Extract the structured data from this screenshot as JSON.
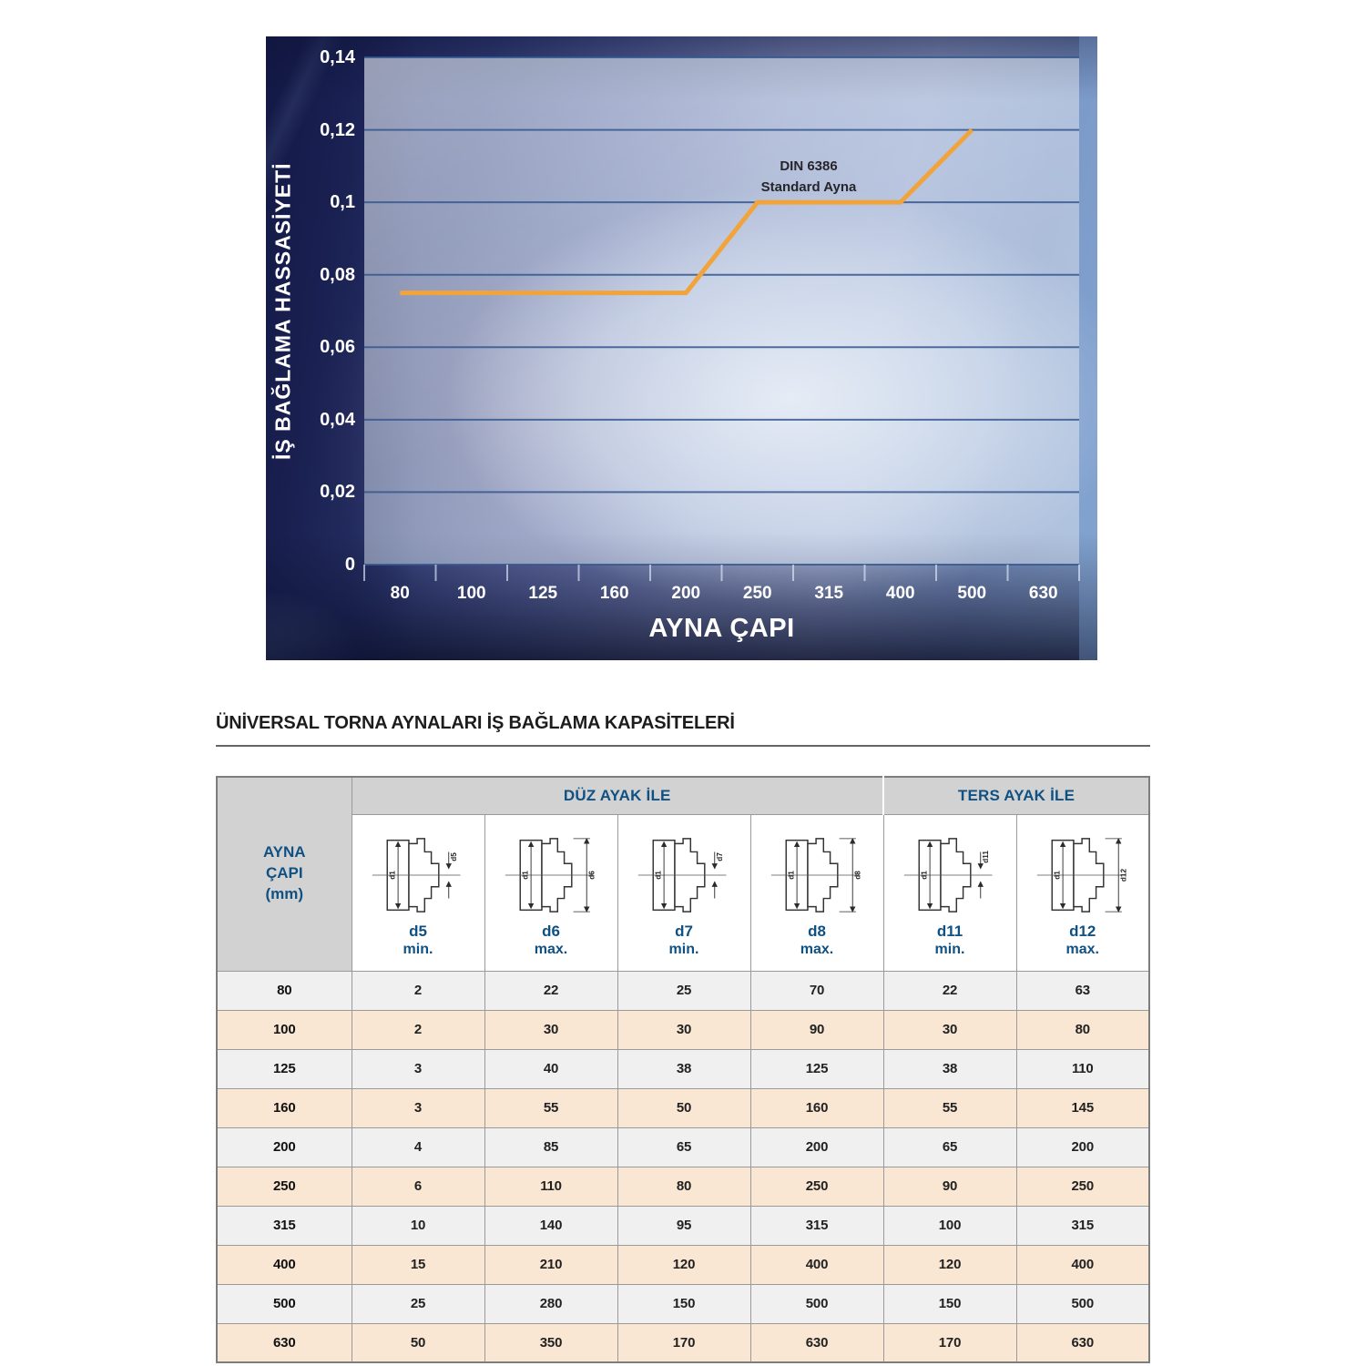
{
  "chart": {
    "y_axis_title": "İŞ BAĞLAMA HASSASİYETİ",
    "x_axis_title": "AYNA ÇAPI",
    "y_ticks": [
      "0,14",
      "0,12",
      "0,1",
      "0,08",
      "0,06",
      "0,04",
      "0,02",
      "0"
    ],
    "x_ticks": [
      "80",
      "100",
      "125",
      "160",
      "200",
      "250",
      "315",
      "400",
      "500",
      "630"
    ],
    "annotation": {
      "line1": "DIN 6386",
      "line2": "Standard Ayna"
    },
    "line_color": "#f2a43c",
    "grid_color": "#35588e"
  },
  "chart_data": {
    "type": "line",
    "title": "",
    "xlabel": "AYNA ÇAPI",
    "ylabel": "İŞ BAĞLAMA HASSASİYETİ",
    "x_categories": [
      "80",
      "100",
      "125",
      "160",
      "200",
      "250",
      "315",
      "400",
      "500",
      "630"
    ],
    "ylim": [
      0,
      0.14
    ],
    "y_gridlines": [
      0.14,
      0.12,
      0.1,
      0.08,
      0.06,
      0.04,
      0.02,
      0
    ],
    "grid": true,
    "legend_position": "none",
    "annotation": "DIN 6386 Standard Ayna",
    "series": [
      {
        "name": "DIN 6386 Standard Ayna",
        "color": "#f2a43c",
        "points": [
          {
            "x": "80",
            "y": 0.075
          },
          {
            "x": "100",
            "y": 0.075
          },
          {
            "x": "125",
            "y": 0.075
          },
          {
            "x": "160",
            "y": 0.075
          },
          {
            "x": "200",
            "y": 0.075
          },
          {
            "x": "250",
            "y": 0.1
          },
          {
            "x": "315",
            "y": 0.1
          },
          {
            "x": "400",
            "y": 0.1
          },
          {
            "x": "500",
            "y": 0.12
          }
        ]
      }
    ]
  },
  "section": {
    "title": "ÜNİVERSAL TORNA AYNALARI İŞ BAĞLAMA KAPASİTELERİ"
  },
  "table": {
    "corner_header": "AYNA\nÇAPI\n(mm)",
    "group_headers": [
      {
        "label": "DÜZ AYAK İLE",
        "colspan": 4
      },
      {
        "label": "TERS AYAK İLE",
        "colspan": 2
      }
    ],
    "columns": [
      {
        "dim": "d5",
        "limit": "min.",
        "inner_label": "d1"
      },
      {
        "dim": "d6",
        "limit": "max.",
        "inner_label": "d1"
      },
      {
        "dim": "d7",
        "limit": "min.",
        "inner_label": "d1"
      },
      {
        "dim": "d8",
        "limit": "max.",
        "inner_label": "d1"
      },
      {
        "dim": "d11",
        "limit": "min.",
        "inner_label": "d1"
      },
      {
        "dim": "d12",
        "limit": "max.",
        "inner_label": "d1"
      }
    ],
    "rows": [
      {
        "diameter": "80",
        "values": [
          "2",
          "22",
          "25",
          "70",
          "22",
          "63"
        ]
      },
      {
        "diameter": "100",
        "values": [
          "2",
          "30",
          "30",
          "90",
          "30",
          "80"
        ]
      },
      {
        "diameter": "125",
        "values": [
          "3",
          "40",
          "38",
          "125",
          "38",
          "110"
        ]
      },
      {
        "diameter": "160",
        "values": [
          "3",
          "55",
          "50",
          "160",
          "55",
          "145"
        ]
      },
      {
        "diameter": "200",
        "values": [
          "4",
          "85",
          "65",
          "200",
          "65",
          "200"
        ]
      },
      {
        "diameter": "250",
        "values": [
          "6",
          "110",
          "80",
          "250",
          "90",
          "250"
        ]
      },
      {
        "diameter": "315",
        "values": [
          "10",
          "140",
          "95",
          "315",
          "100",
          "315"
        ]
      },
      {
        "diameter": "400",
        "values": [
          "15",
          "210",
          "120",
          "400",
          "120",
          "400"
        ]
      },
      {
        "diameter": "500",
        "values": [
          "25",
          "280",
          "150",
          "500",
          "150",
          "500"
        ]
      },
      {
        "diameter": "630",
        "values": [
          "50",
          "350",
          "170",
          "630",
          "170",
          "630"
        ]
      }
    ],
    "colors": {
      "header_bg": "#d2d2d2",
      "row_gray": "#f0f0f0",
      "row_peach": "#fae7d3",
      "header_text": "#0f5183"
    }
  }
}
